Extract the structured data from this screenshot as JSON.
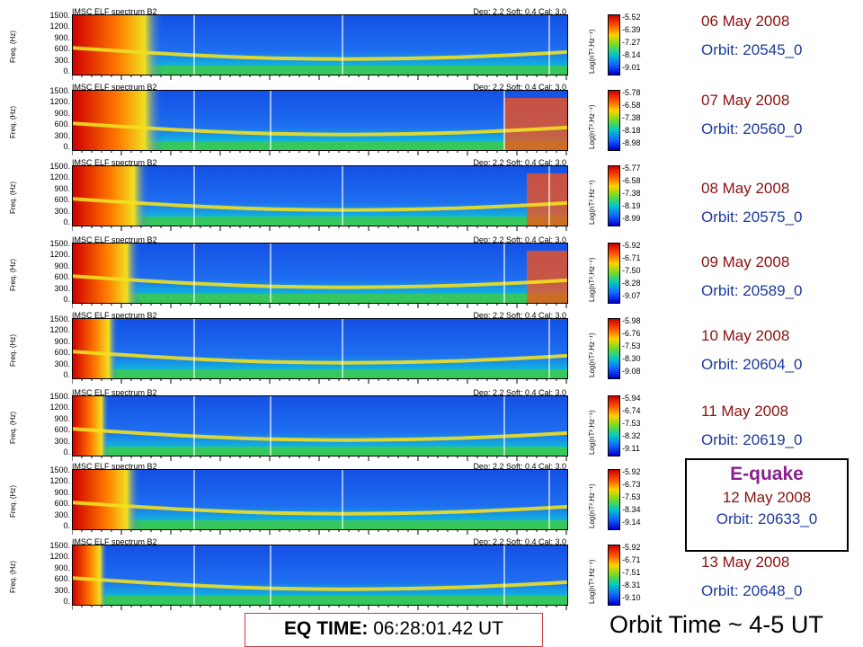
{
  "chart_data": [
    {
      "type": "heatmap",
      "title": "IMSC ELF spectrum   B2",
      "params": "Dep: 2.2  Soft: 0.4  Cal: 3.0",
      "ylabel": "Freq. (Hz)",
      "yticks": [
        "1500.",
        "1200.",
        "900.",
        "600.",
        "300.",
        "0."
      ],
      "colorbar": {
        "label": "Log(nT².Hz⁻¹)",
        "ticks": [
          "-5.52",
          "-6.39",
          "-7.27",
          "-8.14",
          "-9.01"
        ]
      },
      "date": "06 May 2008",
      "orbit": "Orbit: 20545_0"
    },
    {
      "type": "heatmap",
      "title": "IMSC ELF spectrum   B2",
      "params": "Dep: 2.2  Soft: 0.4  Cal: 3.0",
      "ylabel": "Freq. (Hz)",
      "yticks": [
        "1500.",
        "1200.",
        "900.",
        "600.",
        "300.",
        "0."
      ],
      "colorbar": {
        "label": "Log(nT².Hz⁻¹)",
        "ticks": [
          "-5.78",
          "-6.58",
          "-7.38",
          "-8.18",
          "-8.98"
        ]
      },
      "date": "07 May 2008",
      "orbit": "Orbit: 20560_0"
    },
    {
      "type": "heatmap",
      "title": "IMSC ELF spectrum   B2",
      "params": "Dep: 2.2  Soft: 0.4  Cal: 3.0",
      "ylabel": "Freq. (Hz)",
      "yticks": [
        "1500.",
        "1200.",
        "900.",
        "600.",
        "300.",
        "0."
      ],
      "colorbar": {
        "label": "Log(nT².Hz⁻¹)",
        "ticks": [
          "-5.77",
          "-6.58",
          "-7.38",
          "-8.19",
          "-8.99"
        ]
      },
      "date": "08 May 2008",
      "orbit": "Orbit: 20575_0"
    },
    {
      "type": "heatmap",
      "title": "IMSC ELF spectrum   B2",
      "params": "Dep: 2.2  Soft: 0.4  Cal: 3.0",
      "ylabel": "Freq. (Hz)",
      "yticks": [
        "1500.",
        "1200.",
        "900.",
        "600.",
        "300.",
        "0."
      ],
      "colorbar": {
        "label": "Log(nT².Hz⁻¹)",
        "ticks": [
          "-5.92",
          "-6.71",
          "-7.50",
          "-8.28",
          "-9.07"
        ]
      },
      "date": "09 May 2008",
      "orbit": "Orbit: 20589_0"
    },
    {
      "type": "heatmap",
      "title": "IMSC ELF spectrum   B2",
      "params": "Dep: 2.2  Soft: 0.4  Cal: 3.0",
      "ylabel": "Freq. (Hz)",
      "yticks": [
        "1500.",
        "1200.",
        "900.",
        "600.",
        "300.",
        "0."
      ],
      "colorbar": {
        "label": "Log(nT².Hz⁻¹)",
        "ticks": [
          "-5.98",
          "-6.76",
          "-7.53",
          "-8.30",
          "-9.08"
        ]
      },
      "date": "10 May 2008",
      "orbit": "Orbit: 20604_0"
    },
    {
      "type": "heatmap",
      "title": "IMSC ELF spectrum   B2",
      "params": "Dep: 2.2  Soft: 0.4  Cal: 3.0",
      "ylabel": "Freq. (Hz)",
      "yticks": [
        "1500.",
        "1200.",
        "900.",
        "600.",
        "300.",
        "0."
      ],
      "colorbar": {
        "label": "Log(nT².Hz⁻¹)",
        "ticks": [
          "-5.94",
          "-6.74",
          "-7.53",
          "-8.32",
          "-9.11"
        ]
      },
      "date": "11 May 2008",
      "orbit": "Orbit: 20619_0"
    },
    {
      "type": "heatmap",
      "title": "IMSC ELF spectrum   B2",
      "params": "Dep: 2.2  Soft: 0.4  Cal: 3.0",
      "ylabel": "Freq. (Hz)",
      "yticks": [
        "1500.",
        "1200.",
        "900.",
        "600.",
        "300.",
        "0."
      ],
      "colorbar": {
        "label": "Log(nT².Hz⁻¹)",
        "ticks": [
          "-5.92",
          "-6.73",
          "-7.53",
          "-8.34",
          "-9.14"
        ]
      },
      "date": "12 May 2008",
      "orbit": "Orbit: 20633_0"
    },
    {
      "type": "heatmap",
      "title": "IMSC ELF spectrum   B2",
      "params": "Dep: 2.2  Soft: 0.4  Cal: 3.0",
      "ylabel": "Freq. (Hz)",
      "yticks": [
        "1500.",
        "1200.",
        "900.",
        "600.",
        "300.",
        "0."
      ],
      "colorbar": {
        "label": "Log(nT².Hz⁻¹)",
        "ticks": [
          "-5.92",
          "-6.71",
          "-7.51",
          "-8.31",
          "-9.10"
        ]
      },
      "date": "13 May 2008",
      "orbit": "Orbit: 20648_0"
    }
  ],
  "eq_box": {
    "title": "E-quake"
  },
  "eq_time": {
    "label": "EQ TIME:",
    "value": " 06:28:01.42 UT"
  },
  "orbit_time": "Orbit Time ~ 4-5 UT"
}
